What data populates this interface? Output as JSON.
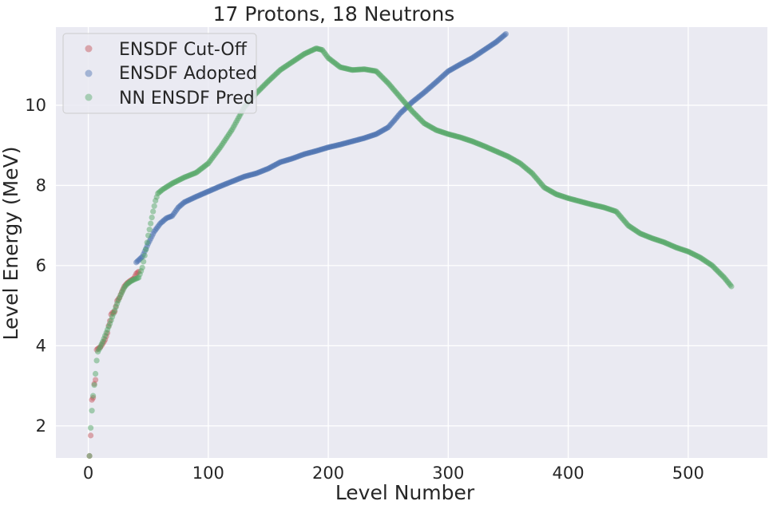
{
  "chart_data": {
    "type": "scatter",
    "title": "17 Protons, 18 Neutrons",
    "xlabel": "Level Number",
    "ylabel": "Level Energy (MeV)",
    "xlim": [
      -27,
      566
    ],
    "ylim": [
      1.2,
      11.95
    ],
    "xticks": [
      0,
      100,
      200,
      300,
      400,
      500
    ],
    "yticks": [
      2,
      4,
      6,
      8,
      10
    ],
    "grid": true,
    "legend_position": "top-left",
    "series": [
      {
        "name": "ENSDF Cut-Off",
        "color": "#c44e52",
        "points": [
          [
            1,
            1.25
          ],
          [
            2,
            1.76
          ],
          [
            3,
            2.65
          ],
          [
            4,
            2.7
          ],
          [
            5,
            3.05
          ],
          [
            6,
            3.15
          ],
          [
            7,
            3.9
          ],
          [
            8,
            3.93
          ],
          [
            10,
            3.96
          ],
          [
            12,
            4.05
          ],
          [
            14,
            4.15
          ],
          [
            16,
            4.32
          ],
          [
            17,
            4.5
          ],
          [
            18,
            4.62
          ],
          [
            19,
            4.78
          ],
          [
            20,
            4.82
          ],
          [
            22,
            4.85
          ],
          [
            24,
            5.12
          ],
          [
            26,
            5.2
          ],
          [
            28,
            5.35
          ],
          [
            30,
            5.48
          ],
          [
            32,
            5.55
          ],
          [
            34,
            5.6
          ],
          [
            36,
            5.64
          ],
          [
            38,
            5.68
          ],
          [
            40,
            5.8
          ],
          [
            42,
            5.85
          ]
        ]
      },
      {
        "name": "ENSDF Adopted",
        "color": "#4c72b0",
        "points": [
          [
            40,
            6.08
          ],
          [
            45,
            6.22
          ],
          [
            50,
            6.55
          ],
          [
            55,
            6.85
          ],
          [
            60,
            7.05
          ],
          [
            65,
            7.18
          ],
          [
            70,
            7.24
          ],
          [
            75,
            7.45
          ],
          [
            80,
            7.58
          ],
          [
            90,
            7.72
          ],
          [
            100,
            7.85
          ],
          [
            110,
            7.98
          ],
          [
            120,
            8.1
          ],
          [
            130,
            8.22
          ],
          [
            140,
            8.3
          ],
          [
            150,
            8.42
          ],
          [
            160,
            8.58
          ],
          [
            170,
            8.67
          ],
          [
            180,
            8.78
          ],
          [
            190,
            8.86
          ],
          [
            200,
            8.95
          ],
          [
            210,
            9.02
          ],
          [
            220,
            9.1
          ],
          [
            230,
            9.18
          ],
          [
            240,
            9.28
          ],
          [
            250,
            9.45
          ],
          [
            255,
            9.62
          ],
          [
            260,
            9.8
          ],
          [
            270,
            10.08
          ],
          [
            280,
            10.32
          ],
          [
            290,
            10.58
          ],
          [
            300,
            10.85
          ],
          [
            310,
            11.02
          ],
          [
            320,
            11.18
          ],
          [
            330,
            11.38
          ],
          [
            340,
            11.58
          ],
          [
            348,
            11.78
          ]
        ]
      },
      {
        "name": "NN ENSDF Pred",
        "color": "#55a868",
        "points": [
          [
            1,
            1.25
          ],
          [
            2,
            1.95
          ],
          [
            3,
            2.38
          ],
          [
            4,
            2.75
          ],
          [
            5,
            3.02
          ],
          [
            6,
            3.3
          ],
          [
            7,
            3.63
          ],
          [
            8,
            3.85
          ],
          [
            10,
            3.97
          ],
          [
            12,
            4.1
          ],
          [
            14,
            4.25
          ],
          [
            16,
            4.4
          ],
          [
            18,
            4.55
          ],
          [
            20,
            4.72
          ],
          [
            22,
            4.88
          ],
          [
            24,
            5.05
          ],
          [
            26,
            5.2
          ],
          [
            28,
            5.33
          ],
          [
            30,
            5.45
          ],
          [
            32,
            5.53
          ],
          [
            35,
            5.6
          ],
          [
            38,
            5.65
          ],
          [
            42,
            5.7
          ],
          [
            45,
            5.95
          ],
          [
            48,
            6.4
          ],
          [
            50,
            6.75
          ],
          [
            52,
            7.05
          ],
          [
            54,
            7.35
          ],
          [
            56,
            7.62
          ],
          [
            58,
            7.8
          ],
          [
            62,
            7.9
          ],
          [
            70,
            8.05
          ],
          [
            80,
            8.2
          ],
          [
            90,
            8.32
          ],
          [
            100,
            8.55
          ],
          [
            110,
            8.95
          ],
          [
            120,
            9.4
          ],
          [
            130,
            9.95
          ],
          [
            140,
            10.3
          ],
          [
            150,
            10.6
          ],
          [
            160,
            10.88
          ],
          [
            170,
            11.08
          ],
          [
            180,
            11.28
          ],
          [
            190,
            11.42
          ],
          [
            195,
            11.38
          ],
          [
            200,
            11.18
          ],
          [
            210,
            10.95
          ],
          [
            220,
            10.88
          ],
          [
            230,
            10.9
          ],
          [
            240,
            10.85
          ],
          [
            250,
            10.55
          ],
          [
            260,
            10.2
          ],
          [
            270,
            9.85
          ],
          [
            280,
            9.55
          ],
          [
            290,
            9.38
          ],
          [
            300,
            9.28
          ],
          [
            310,
            9.2
          ],
          [
            320,
            9.1
          ],
          [
            330,
            8.98
          ],
          [
            340,
            8.85
          ],
          [
            350,
            8.72
          ],
          [
            360,
            8.55
          ],
          [
            370,
            8.3
          ],
          [
            380,
            7.95
          ],
          [
            390,
            7.78
          ],
          [
            400,
            7.68
          ],
          [
            410,
            7.6
          ],
          [
            420,
            7.52
          ],
          [
            430,
            7.45
          ],
          [
            440,
            7.35
          ],
          [
            450,
            7.0
          ],
          [
            460,
            6.8
          ],
          [
            470,
            6.68
          ],
          [
            480,
            6.58
          ],
          [
            490,
            6.45
          ],
          [
            500,
            6.35
          ],
          [
            510,
            6.2
          ],
          [
            520,
            6.0
          ],
          [
            530,
            5.7
          ],
          [
            536,
            5.48
          ]
        ]
      }
    ]
  }
}
